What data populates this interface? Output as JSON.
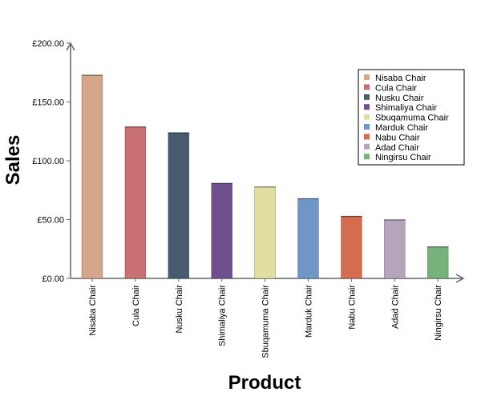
{
  "chart_data": {
    "type": "bar",
    "title": "",
    "xlabel": "Product",
    "ylabel": "Sales",
    "ylim": [
      0,
      200
    ],
    "yticks": [
      0,
      50,
      100,
      150,
      200
    ],
    "ytick_labels": [
      "£0.00",
      "£50.00",
      "£100.00",
      "£150.00",
      "£200.00"
    ],
    "categories": [
      "Nisaba Chair",
      "Cula Chair",
      "Nusku Chair",
      "Shimaliya Chair",
      "Sbuqamuma Chair",
      "Marduk Chair",
      "Nabu Chair",
      "Adad Chair",
      "Ningirsu Chair"
    ],
    "values": [
      173,
      129,
      124,
      81,
      78,
      68,
      53,
      50,
      27
    ],
    "colors": [
      "#d4a68a",
      "#c87074",
      "#465b6d",
      "#6f4f8e",
      "#e1dea2",
      "#7096c6",
      "#d46c4e",
      "#b6a4bd",
      "#76b27a"
    ],
    "legend": {
      "position": "top-right",
      "entries": [
        "Nisaba Chair",
        "Cula Chair",
        "Nusku Chair",
        "Shimaliya Chair",
        "Sbuqamuma Chair",
        "Marduk Chair",
        "Nabu Chair",
        "Adad Chair",
        "Ningirsu Chair"
      ]
    },
    "grid": false
  }
}
